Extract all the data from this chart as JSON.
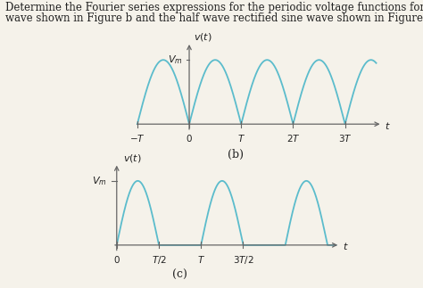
{
  "title_line1": "Determine the Fourier series expressions for the periodic voltage functions for the full wave rectified sine",
  "title_line2": "wave shown in Figure b and the half wave rectified sine wave shown in Figure c.",
  "title_fontsize": 8.5,
  "bg_color": "#f5f2ea",
  "line_color": "#5bbccc",
  "axis_color": "#666666",
  "text_color": "#222222",
  "Vm": 1.0,
  "T": 1.0,
  "fig_label_b": "(b)",
  "fig_label_c": "(c)"
}
